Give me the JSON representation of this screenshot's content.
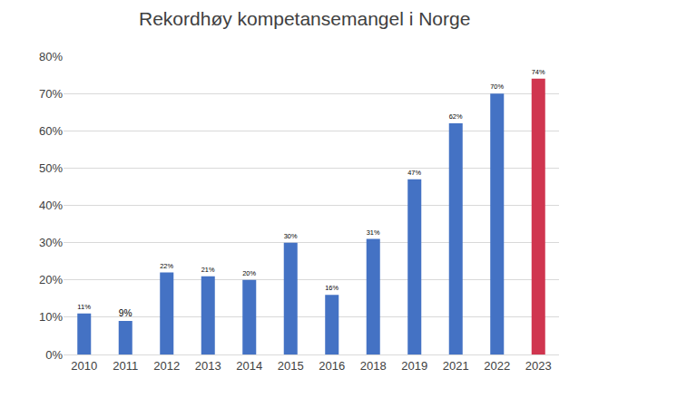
{
  "chart_data": {
    "type": "bar",
    "title": "Rekordhøy kompetansemangel i Norge",
    "categories": [
      "2010",
      "2011",
      "2012",
      "2013",
      "2014",
      "2015",
      "2016",
      "2018",
      "2019",
      "2021",
      "2022",
      "2023"
    ],
    "values": [
      11,
      9,
      22,
      21,
      20,
      30,
      16,
      31,
      47,
      62,
      70,
      74
    ],
    "value_labels": [
      "11%",
      "9%",
      "22%",
      "21%",
      "20%",
      "30%",
      "16%",
      "31%",
      "47%",
      "62%",
      "70%",
      "74%"
    ],
    "colors": [
      "#4472c4",
      "#4472c4",
      "#4472c4",
      "#4472c4",
      "#4472c4",
      "#4472c4",
      "#4472c4",
      "#4472c4",
      "#4472c4",
      "#4472c4",
      "#4472c4",
      "#d0354f"
    ],
    "ylim": [
      0,
      80
    ],
    "yticks": [
      {
        "value": 0,
        "label": "0%"
      },
      {
        "value": 10,
        "label": "10%"
      },
      {
        "value": 20,
        "label": "20%"
      },
      {
        "value": 30,
        "label": "30%"
      },
      {
        "value": 40,
        "label": "40%"
      },
      {
        "value": 50,
        "label": "50%"
      },
      {
        "value": 60,
        "label": "60%"
      },
      {
        "value": 70,
        "label": "70%"
      },
      {
        "value": 80,
        "label": "80%"
      }
    ],
    "grid": true,
    "data_labels": true
  }
}
